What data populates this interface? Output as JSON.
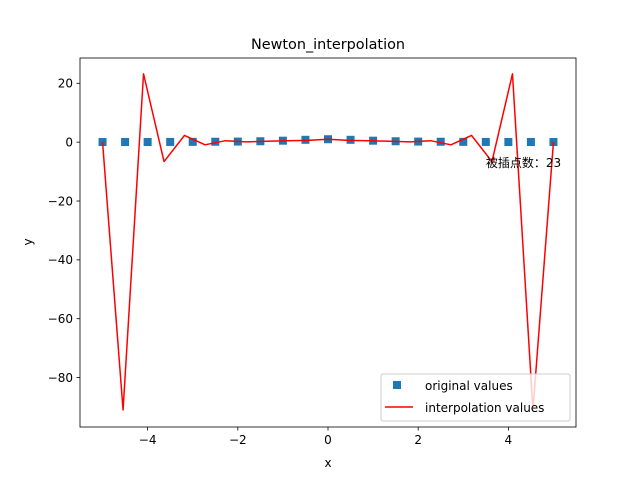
{
  "chart_data": {
    "type": "line",
    "title": "Newton_interpolation",
    "xlabel": "x",
    "ylabel": "y",
    "xlim": [
      -5.5,
      5.5
    ],
    "ylim": [
      -96.8,
      28.6
    ],
    "xticks": [
      -4,
      -2,
      0,
      2,
      4
    ],
    "xtick_labels": [
      "−4",
      "−2",
      "0",
      "2",
      "4"
    ],
    "yticks": [
      20,
      0,
      -20,
      -40,
      -60,
      -80
    ],
    "ytick_labels": [
      "20",
      "0",
      "−20",
      "−40",
      "−60",
      "−80"
    ],
    "grid": false,
    "legend_position": "lower right",
    "annotation": {
      "text": "被插点数：23",
      "x": 3.5,
      "y": -8.5
    },
    "series": [
      {
        "name": "original values",
        "kind": "scatter",
        "marker": "square",
        "color": "#1f77b4",
        "x": [
          -5,
          -4.5,
          -4,
          -3.5,
          -3,
          -2.5,
          -2,
          -1.5,
          -1,
          -0.5,
          0,
          0.5,
          1,
          1.5,
          2,
          2.5,
          3,
          3.5,
          4,
          4.5,
          5
        ],
        "y": [
          0.038,
          0.047,
          0.059,
          0.075,
          0.1,
          0.138,
          0.2,
          0.308,
          0.5,
          0.8,
          1.0,
          0.8,
          0.5,
          0.308,
          0.2,
          0.138,
          0.1,
          0.075,
          0.059,
          0.047,
          0.038
        ]
      },
      {
        "name": "interpolation values",
        "kind": "line",
        "color": "#ff0000",
        "x": [
          -5,
          -4.545,
          -4.091,
          -3.636,
          -3.182,
          -2.727,
          -2.273,
          -1.818,
          -1.364,
          -0.909,
          -0.455,
          0,
          0.455,
          0.909,
          1.364,
          1.818,
          2.273,
          2.727,
          3.182,
          3.636,
          4.091,
          4.545,
          5
        ],
        "y": [
          0.038,
          -91.0,
          23.2,
          -6.6,
          2.3,
          -0.9,
          0.5,
          0.1,
          0.3,
          0.5,
          0.6,
          1.0,
          0.6,
          0.5,
          0.3,
          0.1,
          0.5,
          -0.9,
          2.3,
          -6.6,
          23.2,
          -91.0,
          0.038
        ]
      }
    ]
  }
}
